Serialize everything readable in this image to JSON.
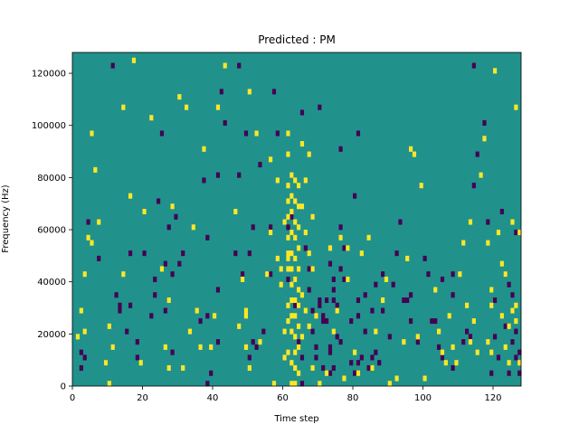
{
  "chart_data": {
    "type": "heatmap",
    "title": "Predicted : PM",
    "xlabel": "Time step",
    "ylabel": "Frequency (Hz)",
    "xlim": [
      0,
      128
    ],
    "ylim": [
      0,
      128000
    ],
    "xticks": [
      0,
      20,
      40,
      60,
      80,
      100,
      120
    ],
    "yticks": [
      0,
      20000,
      40000,
      60000,
      80000,
      100000,
      120000
    ],
    "n_time_steps": 128,
    "n_freq_bins": 64,
    "colormap": {
      "background": "#21918c",
      "low": "#440154",
      "high": "#fde725"
    },
    "low_cells": [
      [
        2,
        3
      ],
      [
        2,
        6
      ],
      [
        3,
        5
      ],
      [
        4,
        31
      ],
      [
        7,
        24
      ],
      [
        9,
        4
      ],
      [
        11,
        61
      ],
      [
        12,
        17
      ],
      [
        13,
        15
      ],
      [
        13,
        14
      ],
      [
        15,
        10
      ],
      [
        16,
        15
      ],
      [
        16,
        25
      ],
      [
        18,
        8
      ],
      [
        18,
        5
      ],
      [
        20,
        25
      ],
      [
        22,
        13
      ],
      [
        23,
        20
      ],
      [
        23,
        17
      ],
      [
        24,
        35
      ],
      [
        25,
        48
      ],
      [
        26,
        23
      ],
      [
        26,
        14
      ],
      [
        27,
        30
      ],
      [
        29,
        32
      ],
      [
        28,
        21
      ],
      [
        28,
        6
      ],
      [
        30,
        23
      ],
      [
        31,
        25
      ],
      [
        36,
        12
      ],
      [
        37,
        39
      ],
      [
        38,
        28
      ],
      [
        38,
        13
      ],
      [
        38,
        0
      ],
      [
        39,
        2
      ],
      [
        41,
        40
      ],
      [
        41,
        18
      ],
      [
        41,
        8
      ],
      [
        42,
        56
      ],
      [
        43,
        50
      ],
      [
        46,
        25
      ],
      [
        47,
        61
      ],
      [
        47,
        40
      ],
      [
        48,
        21
      ],
      [
        49,
        48
      ],
      [
        50,
        5
      ],
      [
        50,
        25
      ],
      [
        51,
        8
      ],
      [
        51,
        30
      ],
      [
        52,
        7
      ],
      [
        53,
        42
      ],
      [
        54,
        10
      ],
      [
        56,
        21
      ],
      [
        56,
        30
      ],
      [
        57,
        56
      ],
      [
        58,
        48
      ],
      [
        61,
        30
      ],
      [
        61,
        20
      ],
      [
        63,
        15
      ],
      [
        62,
        32
      ],
      [
        63,
        20
      ],
      [
        64,
        15
      ],
      [
        64,
        8
      ],
      [
        65,
        5
      ],
      [
        65,
        0
      ],
      [
        65,
        52
      ],
      [
        66,
        26
      ],
      [
        67,
        22
      ],
      [
        67,
        18
      ],
      [
        68,
        14
      ],
      [
        68,
        10
      ],
      [
        69,
        7
      ],
      [
        69,
        5
      ],
      [
        70,
        15
      ],
      [
        70,
        16
      ],
      [
        70,
        53
      ],
      [
        71,
        3
      ],
      [
        71,
        13
      ],
      [
        71,
        12
      ],
      [
        72,
        16
      ],
      [
        72,
        12
      ],
      [
        73,
        2
      ],
      [
        73,
        7
      ],
      [
        73,
        6
      ],
      [
        73,
        23
      ],
      [
        74,
        18
      ],
      [
        74,
        16
      ],
      [
        74,
        3
      ],
      [
        74,
        20
      ],
      [
        75,
        15
      ],
      [
        75,
        9
      ],
      [
        76,
        22
      ],
      [
        76,
        45
      ],
      [
        76,
        8
      ],
      [
        76,
        30
      ],
      [
        77,
        20
      ],
      [
        77,
        26
      ],
      [
        79,
        12
      ],
      [
        79,
        4
      ],
      [
        80,
        36
      ],
      [
        80,
        2
      ],
      [
        81,
        16
      ],
      [
        81,
        13
      ],
      [
        81,
        4
      ],
      [
        81,
        48
      ],
      [
        82,
        5
      ],
      [
        83,
        17
      ],
      [
        83,
        10
      ],
      [
        84,
        3
      ],
      [
        85,
        5
      ],
      [
        85,
        14
      ],
      [
        86,
        19
      ],
      [
        86,
        6
      ],
      [
        87,
        4
      ],
      [
        88,
        21
      ],
      [
        88,
        14
      ],
      [
        90,
        9
      ],
      [
        91,
        19
      ],
      [
        92,
        25
      ],
      [
        93,
        31
      ],
      [
        94,
        16
      ],
      [
        95,
        16
      ],
      [
        96,
        12
      ],
      [
        96,
        17
      ],
      [
        98,
        8
      ],
      [
        100,
        24
      ],
      [
        101,
        21
      ],
      [
        102,
        12
      ],
      [
        103,
        12
      ],
      [
        104,
        7
      ],
      [
        105,
        20
      ],
      [
        105,
        5
      ],
      [
        108,
        21
      ],
      [
        108,
        17
      ],
      [
        108,
        3
      ],
      [
        111,
        8
      ],
      [
        112,
        10
      ],
      [
        113,
        9
      ],
      [
        114,
        61
      ],
      [
        114,
        38
      ],
      [
        115,
        44
      ],
      [
        117,
        50
      ],
      [
        118,
        31
      ],
      [
        119,
        2
      ],
      [
        120,
        9
      ],
      [
        120,
        16
      ],
      [
        121,
        5
      ],
      [
        122,
        33
      ],
      [
        123,
        21
      ],
      [
        123,
        11
      ],
      [
        124,
        2
      ],
      [
        125,
        8
      ],
      [
        126,
        5
      ],
      [
        126,
        10
      ],
      [
        127,
        2
      ],
      [
        127,
        29
      ],
      [
        127,
        6
      ],
      [
        126,
        29
      ],
      [
        125,
        17
      ],
      [
        124,
        19
      ]
    ],
    "high_cells": [
      [
        1,
        9
      ],
      [
        2,
        14
      ],
      [
        3,
        21
      ],
      [
        3,
        10
      ],
      [
        4,
        28
      ],
      [
        5,
        48
      ],
      [
        5,
        27
      ],
      [
        6,
        41
      ],
      [
        7,
        31
      ],
      [
        9,
        4
      ],
      [
        10,
        11
      ],
      [
        10,
        0
      ],
      [
        11,
        7
      ],
      [
        14,
        53
      ],
      [
        14,
        21
      ],
      [
        16,
        36
      ],
      [
        17,
        62
      ],
      [
        19,
        4
      ],
      [
        20,
        33
      ],
      [
        22,
        51
      ],
      [
        25,
        22
      ],
      [
        26,
        7
      ],
      [
        27,
        16
      ],
      [
        27,
        3
      ],
      [
        28,
        34
      ],
      [
        30,
        55
      ],
      [
        31,
        3
      ],
      [
        32,
        53
      ],
      [
        33,
        10
      ],
      [
        34,
        30
      ],
      [
        35,
        14
      ],
      [
        36,
        7
      ],
      [
        37,
        45
      ],
      [
        39,
        7
      ],
      [
        40,
        13
      ],
      [
        41,
        53
      ],
      [
        43,
        61
      ],
      [
        46,
        33
      ],
      [
        47,
        11
      ],
      [
        48,
        20
      ],
      [
        49,
        13
      ],
      [
        49,
        14
      ],
      [
        49,
        7
      ],
      [
        50,
        3
      ],
      [
        50,
        56
      ],
      [
        52,
        48
      ],
      [
        53,
        8
      ],
      [
        55,
        21
      ],
      [
        56,
        29
      ],
      [
        56,
        43
      ],
      [
        57,
        0
      ],
      [
        58,
        39
      ],
      [
        58,
        24
      ],
      [
        59,
        19
      ],
      [
        59,
        22
      ],
      [
        60,
        5
      ],
      [
        60,
        10
      ],
      [
        60,
        31
      ],
      [
        61,
        24
      ],
      [
        61,
        48
      ],
      [
        61,
        44
      ],
      [
        61,
        38
      ],
      [
        61,
        35
      ],
      [
        61,
        32
      ],
      [
        61,
        28
      ],
      [
        61,
        25
      ],
      [
        61,
        22
      ],
      [
        61,
        15
      ],
      [
        61,
        12
      ],
      [
        61,
        6
      ],
      [
        62,
        40
      ],
      [
        62,
        36
      ],
      [
        62,
        33
      ],
      [
        62,
        29
      ],
      [
        62,
        25
      ],
      [
        62,
        22
      ],
      [
        62,
        19
      ],
      [
        62,
        16
      ],
      [
        62,
        13
      ],
      [
        62,
        10
      ],
      [
        62,
        4
      ],
      [
        62,
        0
      ],
      [
        63,
        39
      ],
      [
        63,
        35
      ],
      [
        63,
        31
      ],
      [
        63,
        28
      ],
      [
        63,
        24
      ],
      [
        63,
        20
      ],
      [
        63,
        16
      ],
      [
        63,
        13
      ],
      [
        63,
        9
      ],
      [
        63,
        6
      ],
      [
        63,
        3
      ],
      [
        63,
        0
      ],
      [
        64,
        38
      ],
      [
        64,
        34
      ],
      [
        64,
        30
      ],
      [
        64,
        26
      ],
      [
        64,
        22
      ],
      [
        64,
        18
      ],
      [
        64,
        15
      ],
      [
        64,
        11
      ],
      [
        64,
        7
      ],
      [
        64,
        2
      ],
      [
        65,
        46
      ],
      [
        65,
        34
      ],
      [
        65,
        17
      ],
      [
        65,
        9
      ],
      [
        66,
        39
      ],
      [
        66,
        29
      ],
      [
        66,
        14
      ],
      [
        67,
        44
      ],
      [
        67,
        25
      ],
      [
        67,
        11
      ],
      [
        68,
        32
      ],
      [
        68,
        22
      ],
      [
        68,
        3
      ],
      [
        69,
        13
      ],
      [
        70,
        0
      ],
      [
        72,
        2
      ],
      [
        73,
        26
      ],
      [
        74,
        10
      ],
      [
        75,
        14
      ],
      [
        76,
        28
      ],
      [
        77,
        1
      ],
      [
        78,
        20
      ],
      [
        78,
        26
      ],
      [
        80,
        6
      ],
      [
        81,
        2
      ],
      [
        82,
        25
      ],
      [
        84,
        28
      ],
      [
        85,
        3
      ],
      [
        86,
        10
      ],
      [
        88,
        16
      ],
      [
        89,
        20
      ],
      [
        90,
        0
      ],
      [
        92,
        1
      ],
      [
        94,
        8
      ],
      [
        95,
        24
      ],
      [
        96,
        45
      ],
      [
        97,
        44
      ],
      [
        98,
        9
      ],
      [
        99,
        38
      ],
      [
        100,
        1
      ],
      [
        103,
        18
      ],
      [
        104,
        10
      ],
      [
        105,
        6
      ],
      [
        106,
        4
      ],
      [
        107,
        13
      ],
      [
        108,
        7
      ],
      [
        109,
        4
      ],
      [
        110,
        21
      ],
      [
        111,
        27
      ],
      [
        112,
        15
      ],
      [
        113,
        8
      ],
      [
        113,
        31
      ],
      [
        114,
        12
      ],
      [
        115,
        6
      ],
      [
        116,
        40
      ],
      [
        117,
        47
      ],
      [
        118,
        8
      ],
      [
        118,
        27
      ],
      [
        119,
        18
      ],
      [
        119,
        15
      ],
      [
        119,
        6
      ],
      [
        120,
        60
      ],
      [
        121,
        29
      ],
      [
        122,
        23
      ],
      [
        122,
        13
      ],
      [
        123,
        7
      ],
      [
        123,
        21
      ],
      [
        124,
        11
      ],
      [
        124,
        4
      ],
      [
        125,
        31
      ],
      [
        125,
        14
      ],
      [
        126,
        15
      ],
      [
        126,
        12
      ],
      [
        126,
        53
      ],
      [
        127,
        29
      ],
      [
        127,
        4
      ]
    ]
  }
}
